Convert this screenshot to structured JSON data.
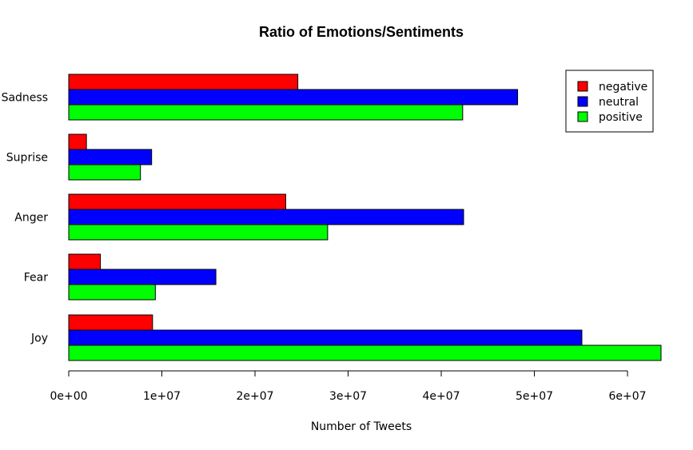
{
  "chart_data": {
    "type": "bar",
    "orientation": "horizontal",
    "title": "Ratio of Emotions/Sentiments",
    "xlabel": "Number of Tweets",
    "ylabel": "",
    "categories": [
      "Sadness",
      "Suprise",
      "Anger",
      "Fear",
      "Joy"
    ],
    "series": [
      {
        "name": "negative",
        "color": "#ff0000",
        "values": [
          24600000,
          1900000,
          23300000,
          3400000,
          9000000
        ]
      },
      {
        "name": "neutral",
        "color": "#0000ff",
        "values": [
          48200000,
          8900000,
          42400000,
          15800000,
          55100000
        ]
      },
      {
        "name": "positive",
        "color": "#00ff00",
        "values": [
          42300000,
          7700000,
          27800000,
          9300000,
          63600000
        ]
      }
    ],
    "xlim": [
      0,
      63600000
    ],
    "xticks": [
      0,
      10000000,
      20000000,
      30000000,
      40000000,
      50000000,
      60000000
    ],
    "xtick_labels": [
      "0e+00",
      "1e+07",
      "2e+07",
      "3e+07",
      "4e+07",
      "5e+07",
      "6e+07"
    ],
    "legend_position": "top-right",
    "grid": false
  }
}
